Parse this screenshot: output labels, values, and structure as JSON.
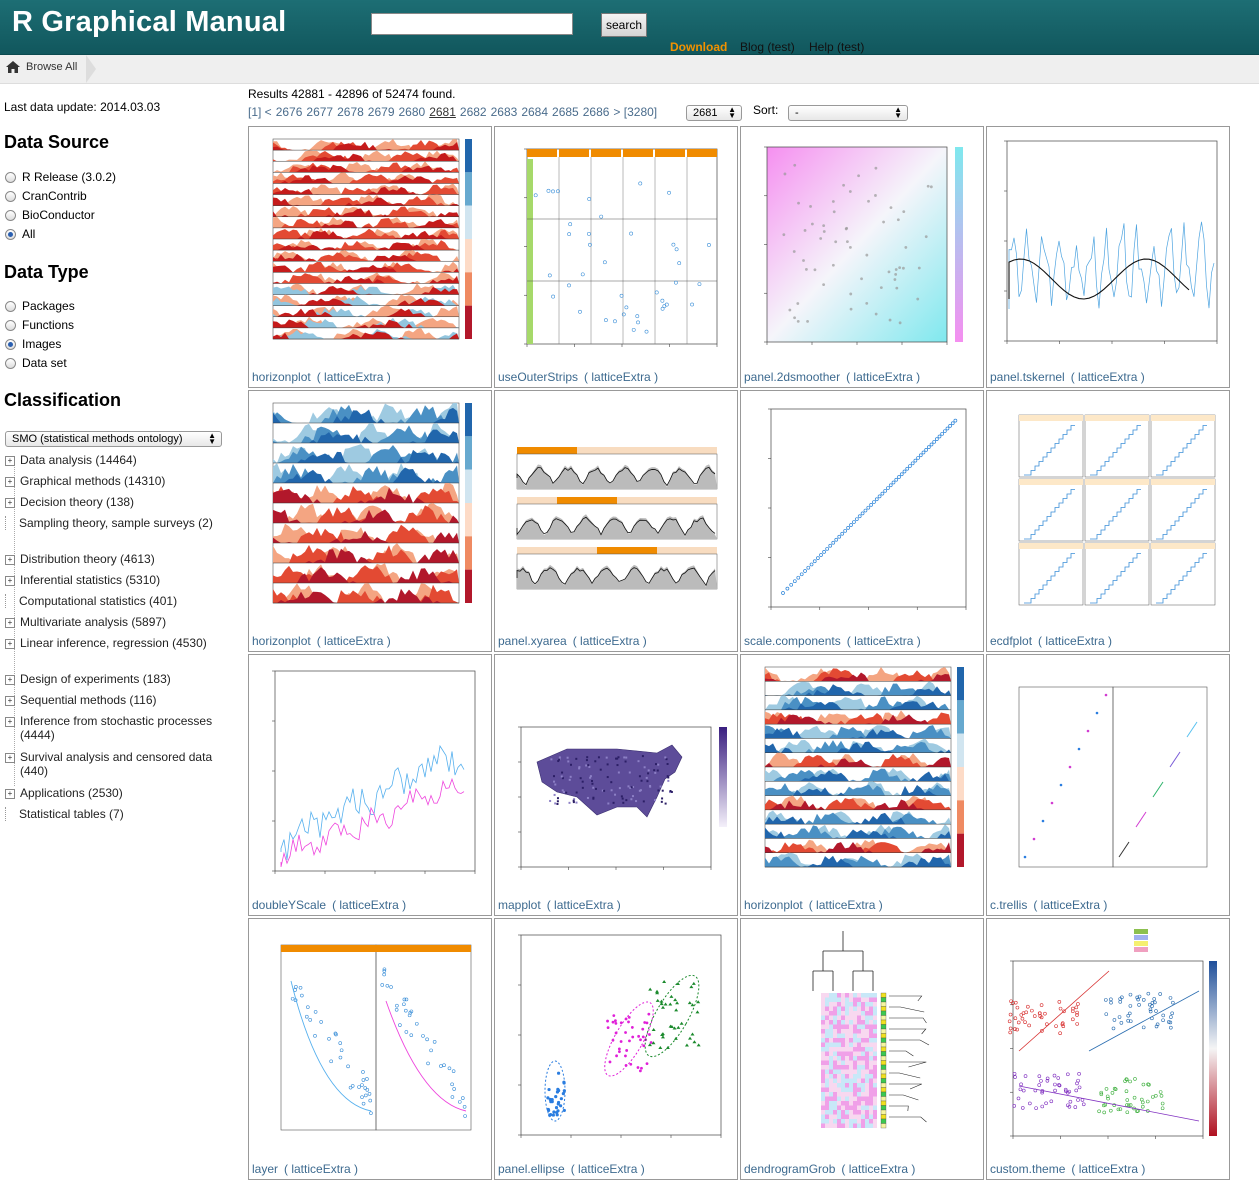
{
  "header": {
    "title": "R Graphical Manual",
    "search_button": "search",
    "nav": [
      "Download",
      "Blog (test)",
      "Help (test)"
    ]
  },
  "breadcrumb": {
    "label": "Browse All"
  },
  "sidebar": {
    "last_update": "Last data update: 2014.03.03",
    "data_source_title": "Data Source",
    "data_source": [
      {
        "label": "R Release (3.0.2)",
        "checked": false
      },
      {
        "label": "CranContrib",
        "checked": false
      },
      {
        "label": "BioConductor",
        "checked": false
      },
      {
        "label": "All",
        "checked": true
      }
    ],
    "data_type_title": "Data Type",
    "data_type": [
      {
        "label": "Packages",
        "checked": false
      },
      {
        "label": "Functions",
        "checked": false
      },
      {
        "label": "Images",
        "checked": true
      },
      {
        "label": "Data set",
        "checked": false
      }
    ],
    "classification_title": "Classification",
    "classification_select": "SMO (statistical methods ontology)",
    "tree": [
      {
        "label": "Data analysis (14464)",
        "expandable": true
      },
      {
        "label": "Graphical methods (14310)",
        "expandable": true
      },
      {
        "label": "Decision theory (138)",
        "expandable": true
      },
      {
        "label": "Sampling theory, sample surveys (2)",
        "expandable": false
      },
      {
        "label": "Distribution theory (4613)",
        "expandable": true
      },
      {
        "label": "Inferential statistics (5310)",
        "expandable": true
      },
      {
        "label": "Computational statistics (401)",
        "expandable": false
      },
      {
        "label": "Multivariate analysis (5897)",
        "expandable": true
      },
      {
        "label": "Linear inference, regression (4530)",
        "expandable": true
      },
      {
        "label": "Design of experiments (183)",
        "expandable": true
      },
      {
        "label": "Sequential methods (116)",
        "expandable": true
      },
      {
        "label": "Inference from stochastic processes (4444)",
        "expandable": true
      },
      {
        "label": "Survival analysis and censored data (440)",
        "expandable": true
      },
      {
        "label": "Applications (2530)",
        "expandable": true
      },
      {
        "label": "Statistical tables (7)",
        "expandable": false
      }
    ]
  },
  "results": {
    "summary": "Results 42881 - 42896 of 52474 found.",
    "pager_pre": "[1] <",
    "pages": [
      "2676",
      "2677",
      "2678",
      "2679",
      "2680",
      "2681",
      "2682",
      "2683",
      "2684",
      "2685",
      "2686"
    ],
    "current": "2681",
    "pager_post": "> [3280]",
    "page_select": "2681",
    "sort_label": "Sort:",
    "sort_select": "-"
  },
  "thumbnails": [
    {
      "func": "horizonplot",
      "pkg": "( latticeExtra )",
      "kind": "horizon-red"
    },
    {
      "func": "useOuterStrips",
      "pkg": "( latticeExtra )",
      "kind": "scatter-panels"
    },
    {
      "func": "panel.2dsmoother",
      "pkg": "( latticeExtra )",
      "kind": "smoother"
    },
    {
      "func": "panel.tskernel",
      "pkg": "( latticeExtra )",
      "kind": "ts"
    },
    {
      "func": "horizonplot",
      "pkg": "( latticeExtra )",
      "kind": "horizon-blue"
    },
    {
      "func": "panel.xyarea",
      "pkg": "( latticeExtra )",
      "kind": "xyarea"
    },
    {
      "func": "scale.components",
      "pkg": "( latticeExtra )",
      "kind": "diag"
    },
    {
      "func": "ecdfplot",
      "pkg": "( latticeExtra )",
      "kind": "ecdf"
    },
    {
      "func": "doubleYScale",
      "pkg": "( latticeExtra )",
      "kind": "double-y"
    },
    {
      "func": "mapplot",
      "pkg": "( latticeExtra )",
      "kind": "map"
    },
    {
      "func": "horizonplot",
      "pkg": "( latticeExtra )",
      "kind": "horizon-mixed"
    },
    {
      "func": "c.trellis",
      "pkg": "( latticeExtra )",
      "kind": "ctrellis"
    },
    {
      "func": "layer",
      "pkg": "( latticeExtra )",
      "kind": "layer"
    },
    {
      "func": "panel.ellipse",
      "pkg": "( latticeExtra )",
      "kind": "ellipse"
    },
    {
      "func": "dendrogramGrob",
      "pkg": "( latticeExtra )",
      "kind": "dendro"
    },
    {
      "func": "custom.theme",
      "pkg": "( latticeExtra )",
      "kind": "custom"
    }
  ],
  "colors": {
    "header": "#15636a",
    "link": "#3d6a8f",
    "download": "#f29100"
  }
}
